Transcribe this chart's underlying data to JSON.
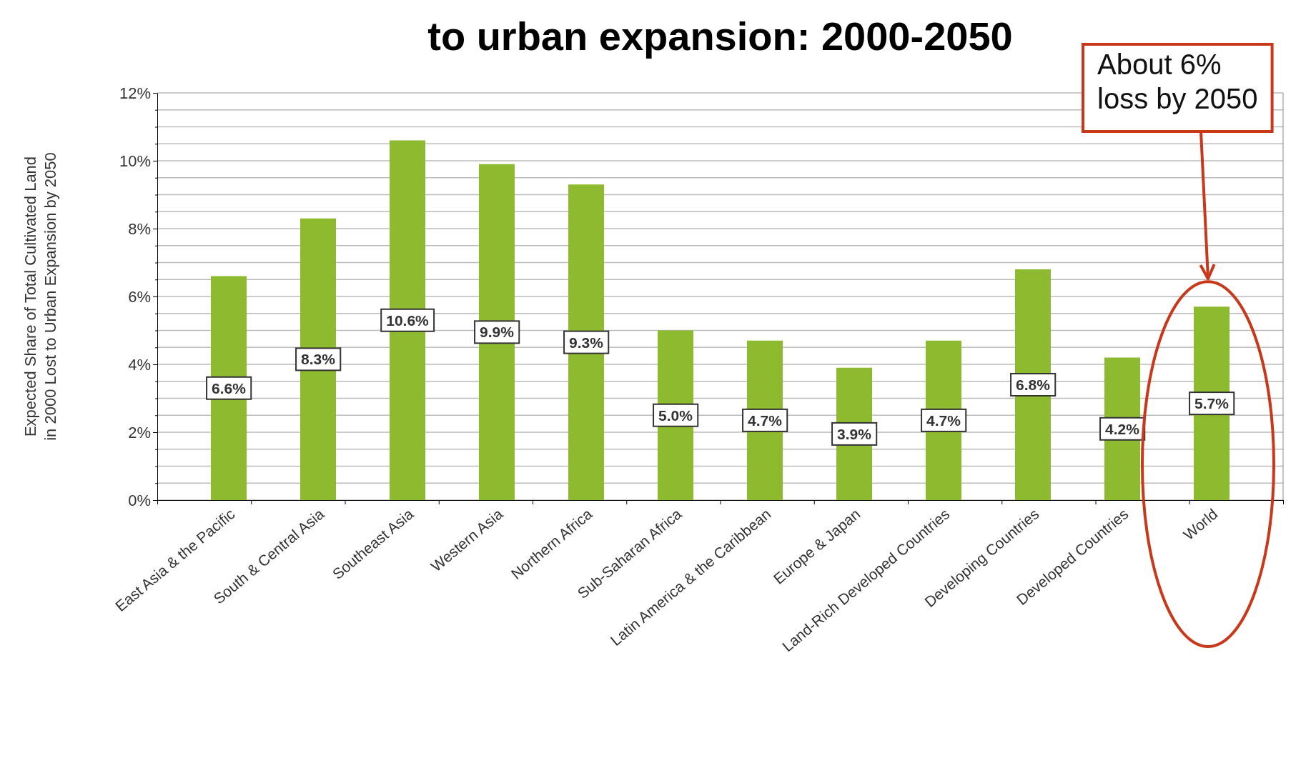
{
  "chart_data": {
    "type": "bar",
    "title": "to urban expansion: 2000-2050",
    "ylabel": "Expected Share of Total Cultivated Land\nin 2000 Lost to Urban Expansion by 2050",
    "categories": [
      "East Asia & the Pacific",
      "South & Central Asia",
      "Southeast Asia",
      "Western Asia",
      "Northern Africa",
      "Sub-Saharan Africa",
      "Latin America & the Caribbean",
      "Europe & Japan",
      "Land-Rich Developed Countries",
      "Developing Countries",
      "Developed Countries",
      "World"
    ],
    "values": [
      6.6,
      8.3,
      10.6,
      9.9,
      9.3,
      5.0,
      4.7,
      3.9,
      4.7,
      6.8,
      4.2,
      5.7
    ],
    "value_labels": [
      "6.6%",
      "8.3%",
      "10.6%",
      "9.9%",
      "9.3%",
      "5.0%",
      "4.7%",
      "3.9%",
      "4.7%",
      "6.8%",
      "4.2%",
      "5.7%"
    ],
    "color": "#8dba2e",
    "ylim": [
      0,
      12
    ],
    "yticks": [
      {
        "value": 0,
        "label": "0%"
      },
      {
        "value": 0.5,
        "label": null
      },
      {
        "value": 1,
        "label": null
      },
      {
        "value": 1.5,
        "label": null
      },
      {
        "value": 2,
        "label": "2%"
      },
      {
        "value": 2.5,
        "label": null
      },
      {
        "value": 3,
        "label": null
      },
      {
        "value": 3.5,
        "label": null
      },
      {
        "value": 4,
        "label": "4%"
      },
      {
        "value": 4.5,
        "label": null
      },
      {
        "value": 5,
        "label": null
      },
      {
        "value": 5.5,
        "label": null
      },
      {
        "value": 6,
        "label": "6%"
      },
      {
        "value": 6.5,
        "label": null
      },
      {
        "value": 7,
        "label": null
      },
      {
        "value": 7.5,
        "label": null
      },
      {
        "value": 8,
        "label": "8%"
      },
      {
        "value": 8.5,
        "label": null
      },
      {
        "value": 9,
        "label": null
      },
      {
        "value": 9.5,
        "label": null
      },
      {
        "value": 10,
        "label": "10%"
      },
      {
        "value": 10.5,
        "label": null
      },
      {
        "value": 11,
        "label": null
      },
      {
        "value": 11.5,
        "label": null
      },
      {
        "value": 12,
        "label": "12%"
      }
    ],
    "grid": "y",
    "annotations": [
      "About 6%\nloss by 2050"
    ]
  }
}
